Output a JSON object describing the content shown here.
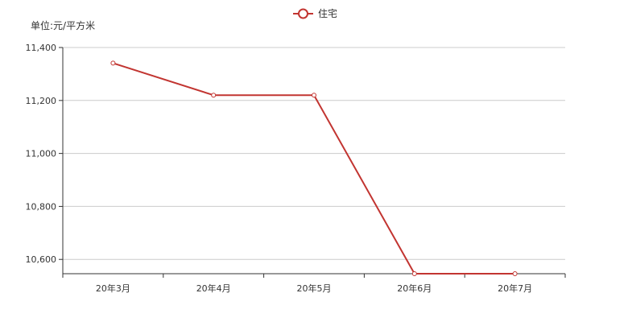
{
  "chart_data": {
    "type": "line",
    "title": "",
    "xlabel": "",
    "ylabel": "单位:元/平方米",
    "categories": [
      "20年3月",
      "20年4月",
      "20年5月",
      "20年6月",
      "20年7月"
    ],
    "series": [
      {
        "name": "住宅",
        "values": [
          11341,
          11220,
          11220,
          10546,
          10546
        ],
        "color": "#c23531"
      }
    ],
    "ylim": [
      10546,
      11400
    ],
    "yticks": [
      10600,
      10800,
      11000,
      11200,
      11400
    ],
    "ytick_labels": [
      "10,600",
      "10,800",
      "11,000",
      "11,200",
      "11,400"
    ],
    "grid": true,
    "legend_position": "top-center"
  },
  "colors": {
    "series": "#c23531",
    "axis": "#333333",
    "grid": "#cccccc"
  }
}
